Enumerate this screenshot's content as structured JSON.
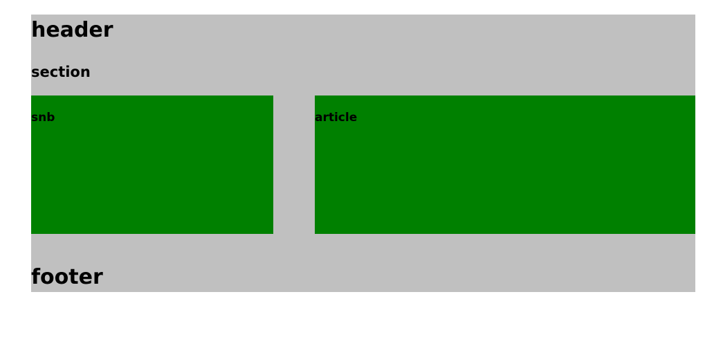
{
  "header": {
    "title": "header"
  },
  "section": {
    "title": "section",
    "snb": {
      "label": "snb"
    },
    "article": {
      "label": "article"
    }
  },
  "footer": {
    "title": "footer"
  },
  "colors": {
    "page_background": "#c0c0c0",
    "box_background": "#008000",
    "text": "#000000"
  }
}
